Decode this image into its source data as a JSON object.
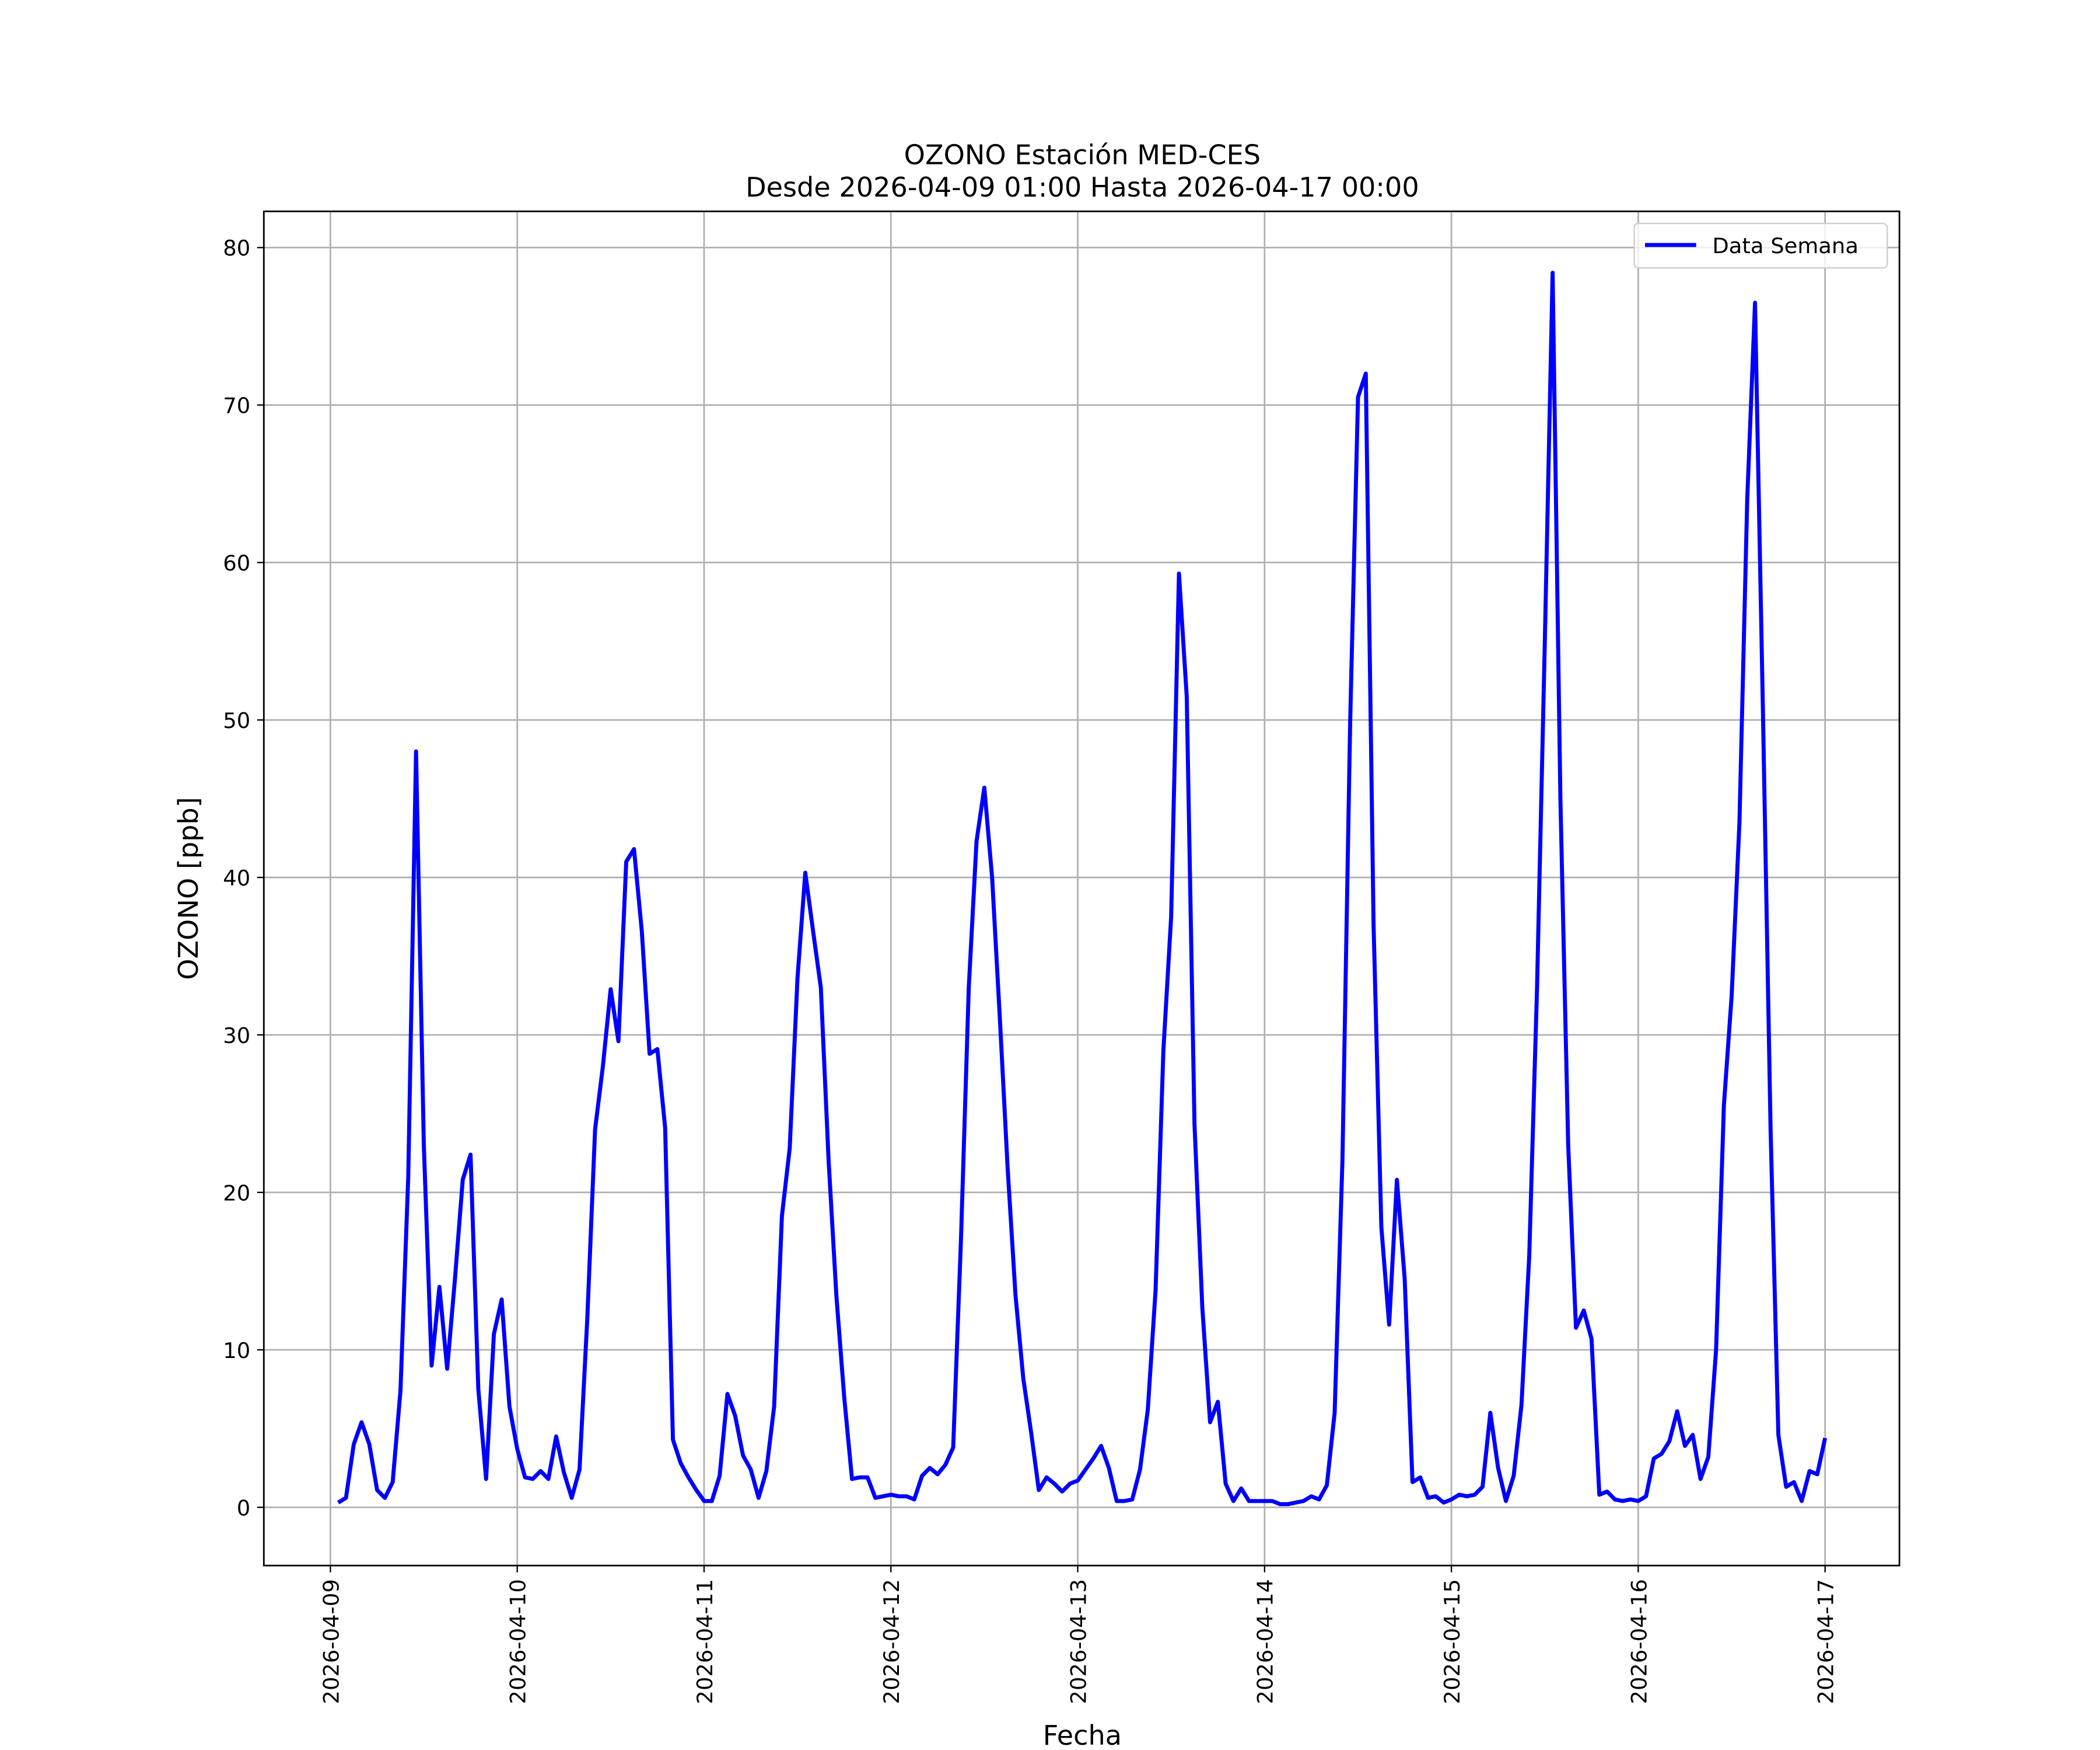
{
  "chart_data": {
    "type": "line",
    "title": "OZONO Estación MED-CES",
    "subtitle": "Desde 2026-04-09 01:00 Hasta 2026-04-17 00:00",
    "x_label": "Fecha",
    "y_label": "OZONO [ppb]",
    "grid": true,
    "legend": "upper right",
    "xlim": [
      "2026-04-08 15:27",
      "2026-04-17 09:33"
    ],
    "xticks": [
      "2026-04-09",
      "2026-04-10",
      "2026-04-11",
      "2026-04-12",
      "2026-04-13",
      "2026-04-14",
      "2026-04-15",
      "2026-04-16",
      "2026-04-17"
    ],
    "ylim": [
      -3.7,
      82.3
    ],
    "yticks": [
      0,
      10,
      20,
      30,
      40,
      50,
      60,
      70,
      80
    ],
    "x": [
      "2026-04-09 01:00",
      "2026-04-09 02:00",
      "2026-04-09 03:00",
      "2026-04-09 04:00",
      "2026-04-09 05:00",
      "2026-04-09 06:00",
      "2026-04-09 07:00",
      "2026-04-09 08:00",
      "2026-04-09 09:00",
      "2026-04-09 10:00",
      "2026-04-09 11:00",
      "2026-04-09 12:00",
      "2026-04-09 13:00",
      "2026-04-09 14:00",
      "2026-04-09 15:00",
      "2026-04-09 16:00",
      "2026-04-09 17:00",
      "2026-04-09 18:00",
      "2026-04-09 19:00",
      "2026-04-09 20:00",
      "2026-04-09 21:00",
      "2026-04-09 22:00",
      "2026-04-09 23:00",
      "2026-04-10 00:00",
      "2026-04-10 01:00",
      "2026-04-10 02:00",
      "2026-04-10 03:00",
      "2026-04-10 04:00",
      "2026-04-10 05:00",
      "2026-04-10 06:00",
      "2026-04-10 07:00",
      "2026-04-10 08:00",
      "2026-04-10 09:00",
      "2026-04-10 10:00",
      "2026-04-10 11:00",
      "2026-04-10 12:00",
      "2026-04-10 13:00",
      "2026-04-10 14:00",
      "2026-04-10 15:00",
      "2026-04-10 16:00",
      "2026-04-10 17:00",
      "2026-04-10 18:00",
      "2026-04-10 19:00",
      "2026-04-10 20:00",
      "2026-04-10 21:00",
      "2026-04-10 22:00",
      "2026-04-10 23:00",
      "2026-04-11 00:00",
      "2026-04-11 01:00",
      "2026-04-11 02:00",
      "2026-04-11 03:00",
      "2026-04-11 04:00",
      "2026-04-11 05:00",
      "2026-04-11 06:00",
      "2026-04-11 07:00",
      "2026-04-11 08:00",
      "2026-04-11 09:00",
      "2026-04-11 10:00",
      "2026-04-11 11:00",
      "2026-04-11 12:00",
      "2026-04-11 13:00",
      "2026-04-11 14:00",
      "2026-04-11 15:00",
      "2026-04-11 16:00",
      "2026-04-11 17:00",
      "2026-04-11 18:00",
      "2026-04-11 19:00",
      "2026-04-11 20:00",
      "2026-04-11 21:00",
      "2026-04-11 22:00",
      "2026-04-11 23:00",
      "2026-04-12 00:00",
      "2026-04-12 01:00",
      "2026-04-12 02:00",
      "2026-04-12 03:00",
      "2026-04-12 04:00",
      "2026-04-12 05:00",
      "2026-04-12 06:00",
      "2026-04-12 07:00",
      "2026-04-12 08:00",
      "2026-04-12 09:00",
      "2026-04-12 10:00",
      "2026-04-12 11:00",
      "2026-04-12 12:00",
      "2026-04-12 13:00",
      "2026-04-12 14:00",
      "2026-04-12 15:00",
      "2026-04-12 16:00",
      "2026-04-12 17:00",
      "2026-04-12 18:00",
      "2026-04-12 19:00",
      "2026-04-12 20:00",
      "2026-04-12 21:00",
      "2026-04-12 22:00",
      "2026-04-12 23:00",
      "2026-04-13 00:00",
      "2026-04-13 01:00",
      "2026-04-13 02:00",
      "2026-04-13 03:00",
      "2026-04-13 04:00",
      "2026-04-13 05:00",
      "2026-04-13 06:00",
      "2026-04-13 07:00",
      "2026-04-13 08:00",
      "2026-04-13 09:00",
      "2026-04-13 10:00",
      "2026-04-13 11:00",
      "2026-04-13 12:00",
      "2026-04-13 13:00",
      "2026-04-13 14:00",
      "2026-04-13 15:00",
      "2026-04-13 16:00",
      "2026-04-13 17:00",
      "2026-04-13 18:00",
      "2026-04-13 19:00",
      "2026-04-13 20:00",
      "2026-04-13 21:00",
      "2026-04-13 22:00",
      "2026-04-13 23:00",
      "2026-04-14 00:00",
      "2026-04-14 01:00",
      "2026-04-14 02:00",
      "2026-04-14 03:00",
      "2026-04-14 04:00",
      "2026-04-14 05:00",
      "2026-04-14 06:00",
      "2026-04-14 07:00",
      "2026-04-14 08:00",
      "2026-04-14 09:00",
      "2026-04-14 10:00",
      "2026-04-14 11:00",
      "2026-04-14 12:00",
      "2026-04-14 13:00",
      "2026-04-14 14:00",
      "2026-04-14 15:00",
      "2026-04-14 16:00",
      "2026-04-14 17:00",
      "2026-04-14 18:00",
      "2026-04-14 19:00",
      "2026-04-14 20:00",
      "2026-04-14 21:00",
      "2026-04-14 22:00",
      "2026-04-14 23:00",
      "2026-04-15 00:00",
      "2026-04-15 01:00",
      "2026-04-15 02:00",
      "2026-04-15 03:00",
      "2026-04-15 04:00",
      "2026-04-15 05:00",
      "2026-04-15 06:00",
      "2026-04-15 07:00",
      "2026-04-15 08:00",
      "2026-04-15 09:00",
      "2026-04-15 10:00",
      "2026-04-15 11:00",
      "2026-04-15 12:00",
      "2026-04-15 13:00",
      "2026-04-15 14:00",
      "2026-04-15 15:00",
      "2026-04-15 16:00",
      "2026-04-15 17:00",
      "2026-04-15 18:00",
      "2026-04-15 19:00",
      "2026-04-15 20:00",
      "2026-04-15 21:00",
      "2026-04-15 22:00",
      "2026-04-15 23:00",
      "2026-04-16 00:00",
      "2026-04-16 01:00",
      "2026-04-16 02:00",
      "2026-04-16 03:00",
      "2026-04-16 04:00",
      "2026-04-16 05:00",
      "2026-04-16 06:00",
      "2026-04-16 07:00",
      "2026-04-16 08:00",
      "2026-04-16 09:00",
      "2026-04-16 10:00",
      "2026-04-16 11:00",
      "2026-04-16 12:00",
      "2026-04-16 13:00",
      "2026-04-16 14:00",
      "2026-04-16 15:00",
      "2026-04-16 16:00",
      "2026-04-16 17:00",
      "2026-04-16 18:00",
      "2026-04-16 19:00",
      "2026-04-16 20:00",
      "2026-04-16 21:00",
      "2026-04-16 22:00",
      "2026-04-16 23:00",
      "2026-04-17 00:00"
    ],
    "series": [
      {
        "name": "Data Semana",
        "color": "#0000ff",
        "values": [
          0.3,
          0.6,
          4,
          5.4,
          4,
          1.1,
          0.6,
          1.6,
          7.4,
          21,
          48,
          23,
          9,
          14,
          8.8,
          14.5,
          20.8,
          22.4,
          7.5,
          1.8,
          11,
          13.2,
          6.4,
          3.7,
          1.9,
          1.8,
          2.3,
          1.8,
          4.5,
          2.2,
          0.6,
          2.4,
          12,
          24,
          28,
          32.9,
          29.6,
          41,
          41.8,
          36.6,
          28.8,
          29.1,
          24.1,
          4.3,
          2.8,
          1.9,
          1.1,
          0.4,
          0.4,
          2,
          7.2,
          5.8,
          3.3,
          2.4,
          0.6,
          2.3,
          6.4,
          18.5,
          22.8,
          33.6,
          40.3,
          36.6,
          33,
          22,
          13.4,
          7,
          1.8,
          1.9,
          1.9,
          0.6,
          0.7,
          0.8,
          0.7,
          0.7,
          0.5,
          2,
          2.5,
          2.1,
          2.7,
          3.8,
          17,
          33,
          42.3,
          45.7,
          40,
          31,
          21.5,
          13.5,
          8.2,
          4.8,
          1.1,
          1.9,
          1.5,
          1,
          1.5,
          1.7,
          2.4,
          3.1,
          3.9,
          2.5,
          0.4,
          0.4,
          0.5,
          2.4,
          6.2,
          13.8,
          29,
          37.5,
          59.3,
          51.5,
          24.3,
          12.7,
          5.4,
          6.7,
          1.5,
          0.4,
          1.2,
          0.4,
          0.4,
          0.4,
          0.4,
          0.2,
          0.2,
          0.3,
          0.4,
          0.7,
          0.5,
          1.4,
          6,
          22,
          50,
          70.5,
          72,
          37,
          17.8,
          11.6,
          20.8,
          14.5,
          1.6,
          1.9,
          0.6,
          0.7,
          0.3,
          0.5,
          0.8,
          0.7,
          0.8,
          1.3,
          6,
          2.5,
          0.4,
          2,
          6.5,
          16,
          33,
          55,
          78.4,
          45,
          23,
          11.4,
          12.5,
          10.7,
          0.8,
          1,
          0.5,
          0.4,
          0.5,
          0.4,
          0.7,
          3.1,
          3.4,
          4.2,
          6.1,
          3.9,
          4.6,
          1.8,
          3.2,
          10,
          25.5,
          32.5,
          43.5,
          64,
          76.5,
          51,
          24,
          4.6,
          1.3,
          1.6,
          0.4,
          2.3,
          2.1,
          4.4
        ]
      }
    ]
  }
}
